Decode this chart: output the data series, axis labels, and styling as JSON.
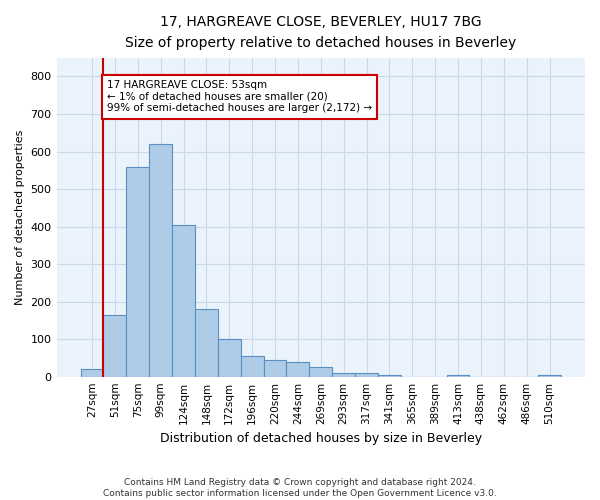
{
  "title_line1": "17, HARGREAVE CLOSE, BEVERLEY, HU17 7BG",
  "title_line2": "Size of property relative to detached houses in Beverley",
  "xlabel": "Distribution of detached houses by size in Beverley",
  "ylabel": "Number of detached properties",
  "footnote": "Contains HM Land Registry data © Crown copyright and database right 2024.\nContains public sector information licensed under the Open Government Licence v3.0.",
  "bin_labels": [
    "27sqm",
    "51sqm",
    "75sqm",
    "99sqm",
    "124sqm",
    "148sqm",
    "172sqm",
    "196sqm",
    "220sqm",
    "244sqm",
    "269sqm",
    "293sqm",
    "317sqm",
    "341sqm",
    "365sqm",
    "389sqm",
    "413sqm",
    "438sqm",
    "462sqm",
    "486sqm",
    "510sqm"
  ],
  "bar_values": [
    20,
    165,
    560,
    620,
    405,
    180,
    100,
    55,
    45,
    40,
    25,
    10,
    10,
    5,
    0,
    0,
    5,
    0,
    0,
    0,
    5
  ],
  "bar_color": "#aecce8",
  "bar_edge_color": "#5a8fc2",
  "grid_color": "#c8d8ea",
  "background_color": "#eaf2fb",
  "vline_x_index": 1,
  "annotation_text": "17 HARGREAVE CLOSE: 53sqm\n← 1% of detached houses are smaller (20)\n99% of semi-detached houses are larger (2,172) →",
  "annotation_box_color": "white",
  "annotation_box_edge_color": "#cc0000",
  "vline_color": "#cc0000",
  "ylim": [
    0,
    850
  ],
  "yticks": [
    0,
    100,
    200,
    300,
    400,
    500,
    600,
    700,
    800
  ],
  "title1_fontsize": 10,
  "title2_fontsize": 9,
  "xlabel_fontsize": 9,
  "ylabel_fontsize": 8,
  "footnote_fontsize": 6.5,
  "tick_fontsize": 8,
  "xtick_fontsize": 7.5,
  "ann_fontsize": 7.5
}
